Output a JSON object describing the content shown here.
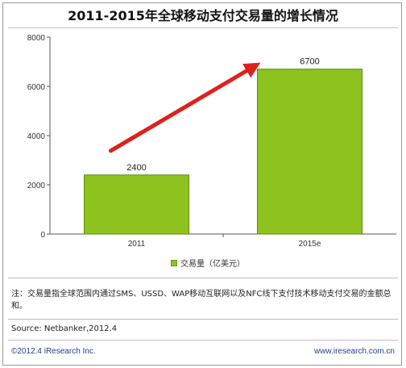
{
  "chart_data": {
    "type": "bar",
    "title": "2011-2015年全球移动支付交易量的增长情况",
    "categories": [
      "2011",
      "2015e"
    ],
    "series": [
      {
        "name": "交易量（亿美元）",
        "values": [
          2400,
          6700
        ]
      }
    ],
    "data_labels": [
      "2400",
      "6700"
    ],
    "ylim": [
      0,
      8000
    ],
    "yticks": [
      "8000",
      "6000",
      "4000",
      "2000",
      "0"
    ],
    "ytick_values": [
      8000,
      6000,
      4000,
      2000,
      0
    ],
    "grid": false,
    "legend_position": "bottom",
    "annotation": "red growth arrow from 2011 bar to 2015e bar",
    "colors": {
      "bar": "#8ec21f",
      "bar_edge": "#5f8a0c",
      "arrow": "#e0201c",
      "axis": "#555555"
    }
  },
  "note": "注：交易量指全球范围内通过SMS、USSD、WAP移动互联网以及NFC线下支付技术移动支付交易的金额总和。",
  "source": "Source: Netbanker,2012.4",
  "copyright": "©2012.4 iResearch Inc.",
  "website": "www.iresearch.com.cn"
}
